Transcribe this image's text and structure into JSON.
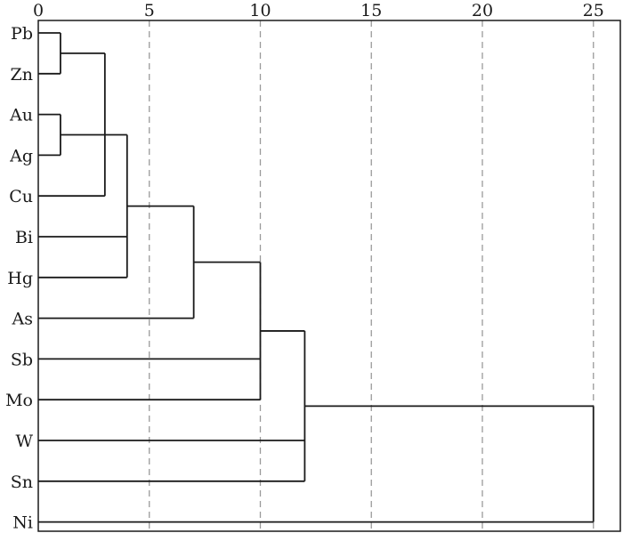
{
  "chart_data": {
    "type": "dendrogram",
    "orientation": "horizontal",
    "xlim": [
      0,
      25.5
    ],
    "x_ticks": [
      0,
      5,
      10,
      15,
      20,
      25
    ],
    "x_axis_position": "top",
    "grid": "dashed vertical",
    "leaves": [
      "Pb",
      "Zn",
      "Au",
      "Ag",
      "Cu",
      "Bi",
      "Hg",
      "As",
      "Sb",
      "Mo",
      "W",
      "Sn",
      "Ni"
    ],
    "merges": [
      {
        "id": "c1",
        "children": [
          "Pb",
          "Zn"
        ],
        "height": 1
      },
      {
        "id": "c2",
        "children": [
          "Au",
          "Ag"
        ],
        "height": 1
      },
      {
        "id": "c3",
        "children": [
          "c1",
          "Cu"
        ],
        "height": 3
      },
      {
        "id": "c4",
        "children": [
          "c2",
          "Bi",
          "Hg"
        ],
        "height": 4
      },
      {
        "id": "c5",
        "children": [
          "c4",
          "As"
        ],
        "height": 7
      },
      {
        "id": "c6",
        "children": [
          "c5",
          "Sb",
          "Mo"
        ],
        "height": 10
      },
      {
        "id": "c7",
        "children": [
          "c6",
          "W",
          "Sn"
        ],
        "height": 12
      },
      {
        "id": "c8",
        "children": [
          "c7",
          "Ni"
        ],
        "height": 25
      }
    ]
  }
}
